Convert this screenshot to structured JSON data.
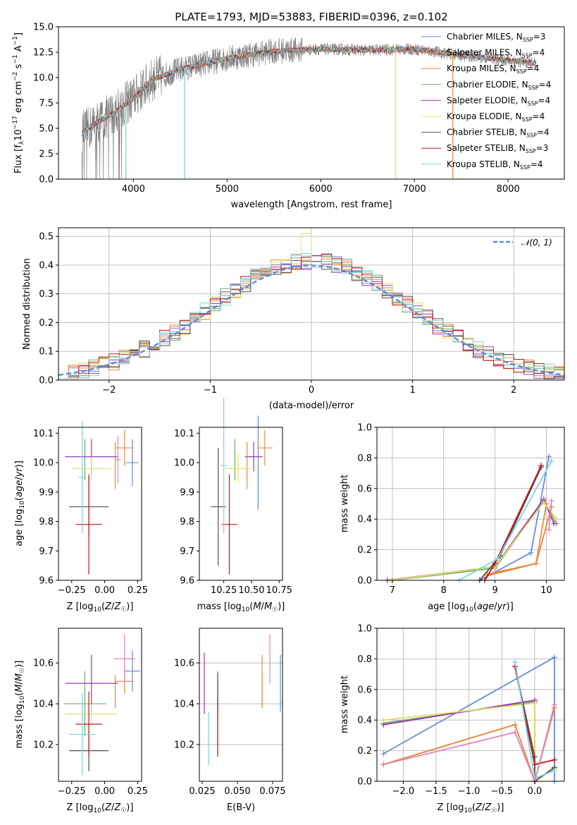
{
  "figure": {
    "title": "PLATE=1793, MJD=53883, FIBERID=0396, z=0.102"
  },
  "colors": {
    "Chabrier MILES": "#6a8bd6",
    "Salpeter MILES": "#e98c4b",
    "Kroupa MILES": "#e8883a",
    "Chabrier ELODIE": "#6fae6f",
    "Salpeter ELODIE": "#9a36b0",
    "Kroupa ELODIE": "#e2e066",
    "Chabrier STELIB": "#505050",
    "Salpeter STELIB": "#c0141c",
    "Kroupa STELIB": "#7fd3dc",
    "extra_pink": "#e880b8",
    "extra_yellowgreen": "#b7dd58",
    "normal_curve": "#5f8bd6",
    "data_gray": "#808080"
  },
  "chart_data": [
    {
      "id": "spectrum",
      "type": "line",
      "title": "PLATE=1793, MJD=53883, FIBERID=0396, z=0.102",
      "xlabel": "wavelength [Angstrom, rest frame]",
      "ylabel": "Flux [f_λ10^-17 erg cm^-2 s^-1 A^-1]",
      "xlim": [
        3200,
        8600
      ],
      "ylim": [
        0,
        15
      ],
      "xticks": [
        "4000",
        "5000",
        "6000",
        "7000",
        "8000"
      ],
      "yticks": [
        "0.0",
        "2.5",
        "5.0",
        "7.5",
        "10.0",
        "12.5",
        "15.0"
      ],
      "legend_position": "right",
      "continuum_x": [
        3450,
        3600,
        3800,
        4000,
        4200,
        4500,
        5000,
        5500,
        6000,
        6500,
        7000,
        7500,
        8000,
        8300
      ],
      "continuum_y": [
        4.5,
        5.5,
        6.6,
        8.0,
        9.8,
        10.8,
        11.9,
        12.6,
        12.8,
        12.7,
        12.8,
        12.2,
        11.7,
        11.4
      ],
      "series": [
        {
          "name": "Chabrier MILES, N_SSP=3",
          "label_main": "Chabrier MILES, N",
          "label_sub": "SSP",
          "label_end": "=3"
        },
        {
          "name": "Salpeter MILES, N_SSP=4",
          "label_main": "Salpeter MILES, N",
          "label_sub": "SSP",
          "label_end": "=4"
        },
        {
          "name": "Kroupa MILES, N_SSP=4",
          "label_main": "Kroupa MILES, N",
          "label_sub": "SSP",
          "label_end": "=4"
        },
        {
          "name": "Chabrier ELODIE, N_SSP=4",
          "label_main": "Chabrier ELODIE, N",
          "label_sub": "SSP",
          "label_end": "=4"
        },
        {
          "name": "Salpeter ELODIE, N_SSP=4",
          "label_main": "Salpeter ELODIE, N",
          "label_sub": "SSP",
          "label_end": "=4"
        },
        {
          "name": "Kroupa ELODIE, N_SSP=4",
          "label_main": "Kroupa ELODIE, N",
          "label_sub": "SSP",
          "label_end": "=4"
        },
        {
          "name": "Chabrier STELIB, N_SSP=4",
          "label_main": "Chabrier STELIB, N",
          "label_sub": "SSP",
          "label_end": "=4"
        },
        {
          "name": "Salpeter STELIB, N_SSP=3",
          "label_main": "Salpeter STELIB, N",
          "label_sub": "SSP",
          "label_end": "=3"
        },
        {
          "name": "Kroupa STELIB, N_SSP=4",
          "label_main": "Kroupa STELIB, N",
          "label_sub": "SSP",
          "label_end": "=4"
        }
      ],
      "cutoffs": [
        {
          "series": "Kroupa STELIB, N_SSP=4",
          "x": 3920
        },
        {
          "series": "Kroupa STELIB, N_SSP=4",
          "x": 4545
        },
        {
          "series": "Kroupa ELODIE, N_SSP=4",
          "x": 6800
        },
        {
          "series": "Salpeter MILES, N_SSP=4",
          "x": 7410
        }
      ]
    },
    {
      "id": "residual_hist",
      "type": "histogram",
      "xlabel": "(data-model)/error",
      "ylabel": "Normed distribution",
      "xlim": [
        -2.5,
        2.5
      ],
      "ylim": [
        0,
        0.53
      ],
      "xticks": [
        "−2",
        "−1",
        "0",
        "1",
        "2"
      ],
      "yticks": [
        "0.0",
        "0.1",
        "0.2",
        "0.3",
        "0.4",
        "0.5"
      ],
      "grid": true,
      "legend_position": "top-right",
      "reference_curve": {
        "name": "N(0,1)",
        "label_main": "𝒩(0, 1)",
        "mean": 0,
        "sigma": 1
      },
      "bin_edges_start": -2.5,
      "bin_width": 0.1,
      "peak_bin_x": -0.05,
      "peak_value": 0.51
    },
    {
      "id": "age_vs_Z",
      "type": "scatter",
      "xlabel": "Z [log10(Z/Z☉)]",
      "ylabel": "age [log10(age/yr)]",
      "xlim": [
        -0.35,
        0.28
      ],
      "ylim": [
        9.6,
        10.12
      ],
      "xticks": [
        "−0.25",
        "0.00",
        "0.25"
      ],
      "yticks": [
        "9.6",
        "9.7",
        "9.8",
        "9.9",
        "10.0",
        "10.1"
      ],
      "points": [
        {
          "series": "Chabrier MILES",
          "x": 0.21,
          "y": 10.0,
          "xerr": 0.05,
          "yerr": 0.08
        },
        {
          "series": "Salpeter MILES",
          "x": 0.15,
          "y": 10.05,
          "xerr": 0.07,
          "yerr": 0.06
        },
        {
          "series": "Kroupa MILES",
          "x": 0.08,
          "y": 9.99,
          "xerr": 0.0,
          "yerr": 0.08
        },
        {
          "series": "Chabrier ELODIE",
          "x": -0.15,
          "y": 10.01,
          "xerr": 0.0,
          "yerr": 0.07
        },
        {
          "series": "Salpeter ELODIE",
          "x": -0.1,
          "y": 10.02,
          "xerr": 0.2,
          "yerr": 0.06
        },
        {
          "series": "Kroupa ELODIE",
          "x": -0.1,
          "y": 9.98,
          "xerr": 0.15,
          "yerr": 0.04
        },
        {
          "series": "Chabrier STELIB",
          "x": -0.12,
          "y": 9.85,
          "xerr": 0.15,
          "yerr": 0.1
        },
        {
          "series": "Salpeter STELIB",
          "x": -0.12,
          "y": 9.79,
          "xerr": 0.1,
          "yerr": 0.17
        },
        {
          "series": "Kroupa STELIB",
          "x": -0.17,
          "y": 9.95,
          "xerr": 0.03,
          "yerr": 0.19
        },
        {
          "series": "extra_pink",
          "x": 0.1,
          "y": 10.01,
          "xerr": 0.02,
          "yerr": 0.08
        }
      ]
    },
    {
      "id": "age_vs_mass",
      "type": "scatter",
      "xlabel": "mass [log10(M/M☉)]",
      "ylabel": "",
      "xlim": [
        10.03,
        10.78
      ],
      "ylim": [
        9.6,
        10.12
      ],
      "xticks": [
        "10.25",
        "10.50",
        "10.75"
      ],
      "yticks": [
        "9.6",
        "9.7",
        "9.8",
        "9.9",
        "10.0",
        "10.1"
      ],
      "points": [
        {
          "series": "Chabrier MILES",
          "x": 10.56,
          "y": 10.0,
          "xerr": 0.0,
          "yerr": 0.16
        },
        {
          "series": "Salpeter MILES",
          "x": 10.62,
          "y": 10.05,
          "xerr": 0.07,
          "yerr": 0.06
        },
        {
          "series": "Kroupa MILES",
          "x": 10.46,
          "y": 9.99,
          "xerr": 0.0,
          "yerr": 0.08
        },
        {
          "series": "Chabrier ELODIE",
          "x": 10.35,
          "y": 10.01,
          "xerr": 0.0,
          "yerr": 0.07
        },
        {
          "series": "Salpeter ELODIE",
          "x": 10.52,
          "y": 10.02,
          "xerr": 0.08,
          "yerr": 0.05
        },
        {
          "series": "Kroupa ELODIE",
          "x": 10.38,
          "y": 9.98,
          "xerr": 0.12,
          "yerr": 0.05
        },
        {
          "series": "Chabrier STELIB",
          "x": 10.2,
          "y": 9.85,
          "xerr": 0.07,
          "yerr": 0.2
        },
        {
          "series": "Salpeter STELIB",
          "x": 10.3,
          "y": 9.79,
          "xerr": 0.07,
          "yerr": 0.17
        },
        {
          "series": "Kroupa STELIB",
          "x": 10.25,
          "y": 9.99,
          "xerr": 0.03,
          "yerr": 0.23
        }
      ]
    },
    {
      "id": "massweight_vs_age",
      "type": "line",
      "xlabel": "age [log10(age/yr)]",
      "ylabel": "mass weight",
      "xlim": [
        6.7,
        10.35
      ],
      "ylim": [
        0,
        1.0
      ],
      "xticks": [
        "7",
        "8",
        "9",
        "10"
      ],
      "yticks": [
        "0.0",
        "0.2",
        "0.4",
        "0.6",
        "0.8",
        "1.0"
      ],
      "grid": true,
      "series": [
        {
          "name": "Chabrier MILES",
          "x": [
            8.7,
            9.7,
            10.05
          ],
          "y": [
            0.0,
            0.18,
            0.81
          ]
        },
        {
          "name": "Salpeter MILES",
          "x": [
            8.85,
            9.8,
            10.0
          ],
          "y": [
            0.04,
            0.11,
            0.5
          ]
        },
        {
          "name": "Kroupa MILES",
          "x": [
            8.85,
            9.8,
            10.1
          ],
          "y": [
            0.03,
            0.11,
            0.48
          ]
        },
        {
          "name": "Chabrier ELODIE",
          "x": [
            7.0,
            9.0,
            9.95,
            10.2
          ],
          "y": [
            0.0,
            0.08,
            0.52,
            0.37
          ]
        },
        {
          "name": "Salpeter ELODIE",
          "x": [
            6.9,
            9.0,
            9.95,
            10.15
          ],
          "y": [
            0.0,
            0.09,
            0.53,
            0.37
          ]
        },
        {
          "name": "Kroupa ELODIE",
          "x": [
            6.95,
            9.0,
            9.95,
            10.2
          ],
          "y": [
            0.0,
            0.09,
            0.51,
            0.4
          ]
        },
        {
          "name": "Chabrier STELIB",
          "x": [
            8.7,
            9.1,
            9.9
          ],
          "y": [
            0.0,
            0.16,
            0.74
          ]
        },
        {
          "name": "Salpeter STELIB",
          "x": [
            8.8,
            9.0,
            9.9
          ],
          "y": [
            0.0,
            0.11,
            0.75
          ]
        },
        {
          "name": "Kroupa STELIB",
          "x": [
            8.3,
            9.05,
            10.1
          ],
          "y": [
            0.0,
            0.14,
            0.78
          ]
        },
        {
          "name": "extra_pink",
          "x": [
            10.05,
            10.1
          ],
          "y": [
            0.33,
            0.52
          ]
        }
      ]
    },
    {
      "id": "mass_vs_Z",
      "type": "scatter",
      "xlabel": "Z [log10(Z/Z☉)]",
      "ylabel": "mass [log10(M/M☉)]",
      "xlim": [
        -0.35,
        0.28
      ],
      "ylim": [
        10.02,
        10.77
      ],
      "xticks": [
        "−0.25",
        "0.00",
        "0.25"
      ],
      "yticks": [
        "10.2",
        "10.4",
        "10.6"
      ],
      "points": [
        {
          "series": "Chabrier MILES",
          "x": 0.21,
          "y": 10.56,
          "xerr": 0.06,
          "yerr": 0.1
        },
        {
          "series": "Salpeter MILES",
          "x": 0.15,
          "y": 10.51,
          "xerr": 0.07,
          "yerr": 0.06
        },
        {
          "series": "Kroupa MILES",
          "x": 0.08,
          "y": 10.46,
          "xerr": 0.0,
          "yerr": 0.08
        },
        {
          "series": "Chabrier ELODIE",
          "x": -0.15,
          "y": 10.4,
          "xerr": 0.16,
          "yerr": 0.16
        },
        {
          "series": "Salpeter ELODIE",
          "x": -0.1,
          "y": 10.5,
          "xerr": 0.2,
          "yerr": 0.14
        },
        {
          "series": "Kroupa ELODIE",
          "x": -0.1,
          "y": 10.35,
          "xerr": 0.2,
          "yerr": 0.05
        },
        {
          "series": "Chabrier STELIB",
          "x": -0.12,
          "y": 10.17,
          "xerr": 0.15,
          "yerr": 0.1
        },
        {
          "series": "Salpeter STELIB",
          "x": -0.12,
          "y": 10.3,
          "xerr": 0.1,
          "yerr": 0.16
        },
        {
          "series": "Kroupa STELIB",
          "x": -0.17,
          "y": 10.25,
          "xerr": 0.1,
          "yerr": 0.2
        },
        {
          "series": "extra_pink",
          "x": 0.15,
          "y": 10.62,
          "xerr": 0.08,
          "yerr": 0.12
        }
      ]
    },
    {
      "id": "mass_vs_EBV",
      "type": "scatter",
      "xlabel": "E(B-V)",
      "ylabel": "",
      "xlim": [
        0.023,
        0.082
      ],
      "ylim": [
        10.02,
        10.77
      ],
      "xticks": [
        "0.025",
        "0.050",
        "0.075"
      ],
      "yticks": [
        "10.2",
        "10.4",
        "10.6"
      ],
      "points": [
        {
          "series": "Chabrier MILES",
          "x": 0.0805,
          "y": 10.5,
          "yerr": 0.14
        },
        {
          "series": "Salpeter MILES",
          "x": 0.0675,
          "y": 10.51,
          "yerr": 0.13
        },
        {
          "series": "Kroupa MILES",
          "x": 0.0675,
          "y": 10.46,
          "yerr": 0.08
        },
        {
          "series": "Chabrier ELODIE",
          "x": 0.036,
          "y": 10.45,
          "yerr": 0.11
        },
        {
          "series": "Salpeter ELODIE",
          "x": 0.0265,
          "y": 10.5,
          "yerr": 0.15
        },
        {
          "series": "Kroupa ELODIE",
          "x": 0.036,
          "y": 10.47,
          "yerr": 0.06
        },
        {
          "series": "Chabrier STELIB",
          "x": 0.036,
          "y": 10.35,
          "yerr": 0.2
        },
        {
          "series": "Salpeter STELIB",
          "x": 0.036,
          "y": 10.28,
          "yerr": 0.14
        },
        {
          "series": "Kroupa STELIB",
          "x": 0.0295,
          "y": 10.23,
          "yerr": 0.13
        },
        {
          "series": "extra_pink",
          "x": 0.073,
          "y": 10.62,
          "yerr": 0.12
        }
      ]
    },
    {
      "id": "massweight_vs_Z",
      "type": "line",
      "xlabel": "Z [log10(Z/Z☉)]",
      "ylabel": "mass weight",
      "xlim": [
        -2.4,
        0.45
      ],
      "ylim": [
        0,
        1.0
      ],
      "xticks": [
        "−2.0",
        "−1.5",
        "−1.0",
        "−0.5",
        "0.0"
      ],
      "yticks": [
        "0.0",
        "0.2",
        "0.4",
        "0.6",
        "0.8",
        "1.0"
      ],
      "grid": true,
      "series": [
        {
          "name": "Chabrier MILES",
          "x": [
            -2.3,
            0.3,
            0.3
          ],
          "y": [
            0.18,
            0.81,
            0.0
          ]
        },
        {
          "name": "Salpeter MILES",
          "x": [
            -2.3,
            -0.3,
            0.0,
            0.3
          ],
          "y": [
            0.11,
            0.37,
            0.0,
            0.48
          ]
        },
        {
          "name": "Kroupa MILES",
          "x": [
            -2.3,
            -0.3,
            0.0,
            0.3
          ],
          "y": [
            0.11,
            0.37,
            0.0,
            0.48
          ]
        },
        {
          "name": "Chabrier ELODIE",
          "x": [
            -2.3,
            0.0,
            0.0,
            0.3
          ],
          "y": [
            0.38,
            0.52,
            0.0,
            0.09
          ]
        },
        {
          "name": "Salpeter ELODIE",
          "x": [
            -2.3,
            0.0,
            0.0,
            0.3
          ],
          "y": [
            0.37,
            0.53,
            0.0,
            0.09
          ]
        },
        {
          "name": "Kroupa ELODIE",
          "x": [
            -2.3,
            0.0,
            0.0,
            0.3
          ],
          "y": [
            0.4,
            0.51,
            0.0,
            0.08
          ]
        },
        {
          "name": "Chabrier STELIB",
          "x": [
            -0.3,
            0.0,
            0.0,
            0.3
          ],
          "y": [
            0.75,
            0.16,
            0.0,
            0.09
          ]
        },
        {
          "name": "Salpeter STELIB",
          "x": [
            -0.3,
            0.0,
            0.3
          ],
          "y": [
            0.75,
            0.11,
            0.14
          ]
        },
        {
          "name": "Kroupa STELIB",
          "x": [
            -0.3,
            0.0,
            0.3
          ],
          "y": [
            0.78,
            0.02,
            0.07
          ]
        },
        {
          "name": "extra_pink",
          "x": [
            -2.3,
            -0.3,
            0.0,
            0.3
          ],
          "y": [
            0.11,
            0.32,
            0.0,
            0.5
          ]
        }
      ]
    }
  ]
}
